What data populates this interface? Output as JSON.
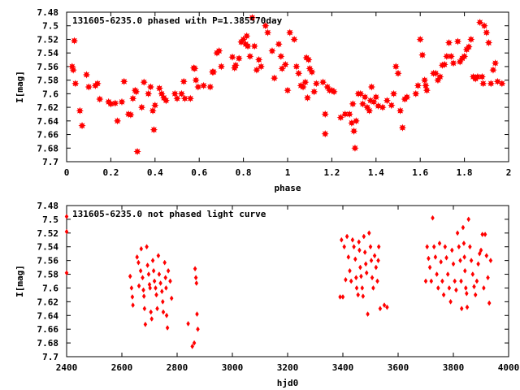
{
  "chart_data": [
    {
      "type": "scatter",
      "title": "131605-6235.0 phased with P=1.385570day",
      "xlabel": "phase",
      "ylabel": "I[mag]",
      "xlim": [
        0,
        2
      ],
      "ylim": [
        7.48,
        7.7
      ],
      "y_inverted": true,
      "xticks": [
        "0",
        "0.2",
        "0.4",
        "0.6",
        "0.8",
        "1",
        "1.2",
        "1.4",
        "1.6",
        "1.8",
        "2"
      ],
      "yticks": [
        "7.48",
        "7.5",
        "7.52",
        "7.54",
        "7.56",
        "7.58",
        "7.6",
        "7.62",
        "7.64",
        "7.66",
        "7.68",
        "7.7"
      ],
      "marker": "star",
      "color": "#ff0000",
      "grid": false,
      "points": [
        [
          0.025,
          7.56
        ],
        [
          0.03,
          7.565
        ],
        [
          0.035,
          7.522
        ],
        [
          0.04,
          7.585
        ],
        [
          0.06,
          7.625
        ],
        [
          0.07,
          7.647
        ],
        [
          0.09,
          7.572
        ],
        [
          0.1,
          7.59
        ],
        [
          0.13,
          7.588
        ],
        [
          0.14,
          7.585
        ],
        [
          0.15,
          7.608
        ],
        [
          0.19,
          7.612
        ],
        [
          0.2,
          7.615
        ],
        [
          0.22,
          7.614
        ],
        [
          0.23,
          7.64
        ],
        [
          0.25,
          7.612
        ],
        [
          0.26,
          7.582
        ],
        [
          0.28,
          7.63
        ],
        [
          0.29,
          7.631
        ],
        [
          0.3,
          7.607
        ],
        [
          0.31,
          7.595
        ],
        [
          0.315,
          7.597
        ],
        [
          0.32,
          7.685
        ],
        [
          0.34,
          7.62
        ],
        [
          0.35,
          7.583
        ],
        [
          0.37,
          7.6
        ],
        [
          0.38,
          7.59
        ],
        [
          0.39,
          7.625
        ],
        [
          0.395,
          7.653
        ],
        [
          0.4,
          7.617
        ],
        [
          0.42,
          7.592
        ],
        [
          0.43,
          7.6
        ],
        [
          0.44,
          7.606
        ],
        [
          0.45,
          7.61
        ],
        [
          0.49,
          7.6
        ],
        [
          0.5,
          7.607
        ],
        [
          0.52,
          7.6
        ],
        [
          0.53,
          7.582
        ],
        [
          0.535,
          7.607
        ],
        [
          0.56,
          7.607
        ],
        [
          0.575,
          7.562
        ],
        [
          0.58,
          7.563
        ],
        [
          0.585,
          7.58
        ],
        [
          0.595,
          7.59
        ],
        [
          0.62,
          7.588
        ],
        [
          0.65,
          7.59
        ],
        [
          0.66,
          7.568
        ],
        [
          0.665,
          7.568
        ],
        [
          0.68,
          7.54
        ],
        [
          0.69,
          7.537
        ],
        [
          0.7,
          7.56
        ],
        [
          0.75,
          7.546
        ],
        [
          0.76,
          7.562
        ],
        [
          0.765,
          7.558
        ],
        [
          0.78,
          7.548
        ],
        [
          0.79,
          7.524
        ],
        [
          0.8,
          7.52
        ],
        [
          0.81,
          7.527
        ],
        [
          0.815,
          7.515
        ],
        [
          0.82,
          7.53
        ],
        [
          0.83,
          7.545
        ],
        [
          0.84,
          7.488
        ],
        [
          0.85,
          7.53
        ],
        [
          0.86,
          7.565
        ],
        [
          0.87,
          7.55
        ],
        [
          0.88,
          7.56
        ],
        [
          0.9,
          7.5
        ],
        [
          0.91,
          7.51
        ],
        [
          0.93,
          7.537
        ],
        [
          0.94,
          7.577
        ],
        [
          0.96,
          7.527
        ],
        [
          0.97,
          7.545
        ],
        [
          0.975,
          7.563
        ],
        [
          0.99,
          7.557
        ],
        [
          1.0,
          7.595
        ],
        [
          1.01,
          7.51
        ],
        [
          1.03,
          7.52
        ],
        [
          1.04,
          7.56
        ],
        [
          1.05,
          7.57
        ],
        [
          1.06,
          7.588
        ],
        [
          1.07,
          7.59
        ],
        [
          1.08,
          7.583
        ],
        [
          1.085,
          7.547
        ],
        [
          1.09,
          7.606
        ],
        [
          1.095,
          7.55
        ],
        [
          1.1,
          7.563
        ],
        [
          1.11,
          7.568
        ],
        [
          1.12,
          7.597
        ],
        [
          1.13,
          7.585
        ],
        [
          1.16,
          7.583
        ],
        [
          1.17,
          7.63
        ],
        [
          1.18,
          7.59
        ],
        [
          1.19,
          7.595
        ],
        [
          1.2,
          7.595
        ],
        [
          1.21,
          7.597
        ],
        [
          1.17,
          7.659
        ],
        [
          1.24,
          7.635
        ],
        [
          1.26,
          7.63
        ],
        [
          1.28,
          7.63
        ],
        [
          1.29,
          7.643
        ],
        [
          1.295,
          7.615
        ],
        [
          1.3,
          7.655
        ],
        [
          1.305,
          7.68
        ],
        [
          1.31,
          7.64
        ],
        [
          1.32,
          7.6
        ],
        [
          1.33,
          7.6
        ],
        [
          1.34,
          7.615
        ],
        [
          1.35,
          7.605
        ],
        [
          1.36,
          7.62
        ],
        [
          1.37,
          7.625
        ],
        [
          1.375,
          7.61
        ],
        [
          1.38,
          7.59
        ],
        [
          1.39,
          7.612
        ],
        [
          1.4,
          7.605
        ],
        [
          1.41,
          7.618
        ],
        [
          1.43,
          7.62
        ],
        [
          1.45,
          7.61
        ],
        [
          1.47,
          7.617
        ],
        [
          1.48,
          7.6
        ],
        [
          1.49,
          7.56
        ],
        [
          1.5,
          7.57
        ],
        [
          1.51,
          7.625
        ],
        [
          1.52,
          7.65
        ],
        [
          1.53,
          7.608
        ],
        [
          1.54,
          7.605
        ],
        [
          1.58,
          7.6
        ],
        [
          1.59,
          7.588
        ],
        [
          1.6,
          7.52
        ],
        [
          1.61,
          7.543
        ],
        [
          1.62,
          7.58
        ],
        [
          1.625,
          7.588
        ],
        [
          1.63,
          7.595
        ],
        [
          1.66,
          7.57
        ],
        [
          1.67,
          7.57
        ],
        [
          1.68,
          7.58
        ],
        [
          1.69,
          7.575
        ],
        [
          1.7,
          7.558
        ],
        [
          1.71,
          7.557
        ],
        [
          1.72,
          7.545
        ],
        [
          1.73,
          7.525
        ],
        [
          1.74,
          7.545
        ],
        [
          1.75,
          7.555
        ],
        [
          1.77,
          7.523
        ],
        [
          1.78,
          7.553
        ],
        [
          1.79,
          7.548
        ],
        [
          1.8,
          7.545
        ],
        [
          1.81,
          7.535
        ],
        [
          1.82,
          7.531
        ],
        [
          1.83,
          7.52
        ],
        [
          1.84,
          7.575
        ],
        [
          1.85,
          7.578
        ],
        [
          1.86,
          7.575
        ],
        [
          1.87,
          7.495
        ],
        [
          1.88,
          7.575
        ],
        [
          1.885,
          7.585
        ],
        [
          1.89,
          7.5
        ],
        [
          1.9,
          7.51
        ],
        [
          1.91,
          7.525
        ],
        [
          1.92,
          7.585
        ],
        [
          1.93,
          7.565
        ],
        [
          1.94,
          7.555
        ],
        [
          1.95,
          7.582
        ],
        [
          1.97,
          7.585
        ]
      ]
    },
    {
      "type": "scatter",
      "title": "131605-6235.0 not phased light curve",
      "xlabel": "hjd0",
      "ylabel": "I[mag]",
      "xlim": [
        2400,
        4000
      ],
      "ylim": [
        7.48,
        7.7
      ],
      "y_inverted": true,
      "xticks": [
        "2400",
        "2600",
        "2800",
        "3000",
        "3200",
        "3400",
        "3600",
        "3800",
        "4000"
      ],
      "yticks": [
        "7.48",
        "7.5",
        "7.52",
        "7.54",
        "7.56",
        "7.58",
        "7.6",
        "7.62",
        "7.64",
        "7.66",
        "7.68",
        "7.7"
      ],
      "marker": "diamond",
      "color": "#ff0000",
      "grid": false,
      "points": [
        [
          2400,
          7.496
        ],
        [
          2400,
          7.518
        ],
        [
          2400,
          7.578
        ],
        [
          2630,
          7.583
        ],
        [
          2635,
          7.6
        ],
        [
          2638,
          7.613
        ],
        [
          2640,
          7.625
        ],
        [
          2655,
          7.555
        ],
        [
          2660,
          7.563
        ],
        [
          2662,
          7.597
        ],
        [
          2668,
          7.575
        ],
        [
          2670,
          7.543
        ],
        [
          2675,
          7.585
        ],
        [
          2678,
          7.603
        ],
        [
          2680,
          7.612
        ],
        [
          2682,
          7.63
        ],
        [
          2685,
          7.653
        ],
        [
          2690,
          7.54
        ],
        [
          2693,
          7.567
        ],
        [
          2697,
          7.58
        ],
        [
          2700,
          7.595
        ],
        [
          2702,
          7.6
        ],
        [
          2705,
          7.635
        ],
        [
          2708,
          7.645
        ],
        [
          2712,
          7.56
        ],
        [
          2715,
          7.575
        ],
        [
          2718,
          7.59
        ],
        [
          2722,
          7.6
        ],
        [
          2725,
          7.61
        ],
        [
          2728,
          7.63
        ],
        [
          2732,
          7.553
        ],
        [
          2735,
          7.58
        ],
        [
          2740,
          7.593
        ],
        [
          2745,
          7.605
        ],
        [
          2748,
          7.62
        ],
        [
          2750,
          7.635
        ],
        [
          2755,
          7.563
        ],
        [
          2758,
          7.585
        ],
        [
          2760,
          7.6
        ],
        [
          2762,
          7.64
        ],
        [
          2765,
          7.658
        ],
        [
          2768,
          7.575
        ],
        [
          2775,
          7.59
        ],
        [
          2780,
          7.615
        ],
        [
          2840,
          7.652
        ],
        [
          2855,
          7.685
        ],
        [
          2862,
          7.68
        ],
        [
          2865,
          7.572
        ],
        [
          2868,
          7.585
        ],
        [
          2870,
          7.593
        ],
        [
          2872,
          7.638
        ],
        [
          2875,
          7.66
        ],
        [
          3390,
          7.613
        ],
        [
          3395,
          7.53
        ],
        [
          3400,
          7.613
        ],
        [
          3405,
          7.54
        ],
        [
          3410,
          7.588
        ],
        [
          3415,
          7.525
        ],
        [
          3420,
          7.555
        ],
        [
          3425,
          7.575
        ],
        [
          3430,
          7.59
        ],
        [
          3435,
          7.53
        ],
        [
          3440,
          7.54
        ],
        [
          3445,
          7.558
        ],
        [
          3448,
          7.585
        ],
        [
          3450,
          7.6
        ],
        [
          3455,
          7.61
        ],
        [
          3458,
          7.533
        ],
        [
          3460,
          7.545
        ],
        [
          3463,
          7.57
        ],
        [
          3466,
          7.583
        ],
        [
          3470,
          7.6
        ],
        [
          3473,
          7.612
        ],
        [
          3476,
          7.525
        ],
        [
          3480,
          7.548
        ],
        [
          3483,
          7.565
        ],
        [
          3486,
          7.578
        ],
        [
          3490,
          7.638
        ],
        [
          3495,
          7.52
        ],
        [
          3500,
          7.54
        ],
        [
          3503,
          7.56
        ],
        [
          3506,
          7.585
        ],
        [
          3510,
          7.6
        ],
        [
          3515,
          7.553
        ],
        [
          3520,
          7.57
        ],
        [
          3525,
          7.59
        ],
        [
          3528,
          7.56
        ],
        [
          3530,
          7.54
        ],
        [
          3535,
          7.63
        ],
        [
          3550,
          7.625
        ],
        [
          3560,
          7.628
        ],
        [
          3700,
          7.59
        ],
        [
          3705,
          7.54
        ],
        [
          3710,
          7.557
        ],
        [
          3715,
          7.57
        ],
        [
          3720,
          7.59
        ],
        [
          3725,
          7.498
        ],
        [
          3730,
          7.54
        ],
        [
          3735,
          7.555
        ],
        [
          3740,
          7.58
        ],
        [
          3745,
          7.6
        ],
        [
          3750,
          7.535
        ],
        [
          3755,
          7.562
        ],
        [
          3760,
          7.59
        ],
        [
          3765,
          7.61
        ],
        [
          3770,
          7.54
        ],
        [
          3775,
          7.556
        ],
        [
          3780,
          7.58
        ],
        [
          3785,
          7.6
        ],
        [
          3790,
          7.62
        ],
        [
          3795,
          7.545
        ],
        [
          3800,
          7.565
        ],
        [
          3805,
          7.59
        ],
        [
          3810,
          7.603
        ],
        [
          3815,
          7.52
        ],
        [
          3820,
          7.54
        ],
        [
          3825,
          7.56
        ],
        [
          3828,
          7.59
        ],
        [
          3830,
          7.63
        ],
        [
          3835,
          7.512
        ],
        [
          3838,
          7.535
        ],
        [
          3840,
          7.555
        ],
        [
          3842,
          7.575
        ],
        [
          3845,
          7.6
        ],
        [
          3848,
          7.608
        ],
        [
          3850,
          7.628
        ],
        [
          3855,
          7.5
        ],
        [
          3860,
          7.54
        ],
        [
          3865,
          7.56
        ],
        [
          3870,
          7.58
        ],
        [
          3875,
          7.598
        ],
        [
          3880,
          7.61
        ],
        [
          3885,
          7.59
        ],
        [
          3890,
          7.565
        ],
        [
          3895,
          7.55
        ],
        [
          3900,
          7.545
        ],
        [
          3905,
          7.522
        ],
        [
          3910,
          7.6
        ],
        [
          3915,
          7.522
        ],
        [
          3920,
          7.553
        ],
        [
          3925,
          7.585
        ],
        [
          3930,
          7.622
        ],
        [
          3935,
          7.56
        ]
      ]
    }
  ]
}
